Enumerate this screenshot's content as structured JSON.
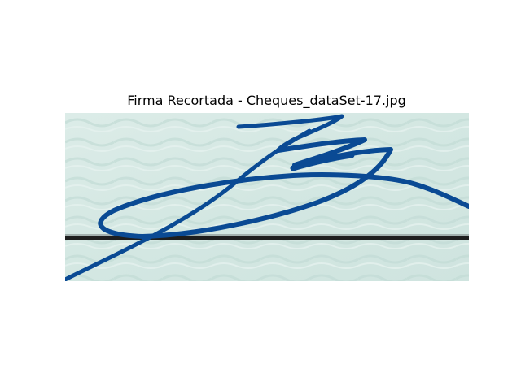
{
  "figure": {
    "title": "Firma Recortada - Cheques_dataSet-17.jpg"
  },
  "image": {
    "background_color": "#d5e8e4",
    "ink_color": "#0a4a94",
    "rule_line_color": "#1e1e1e"
  }
}
